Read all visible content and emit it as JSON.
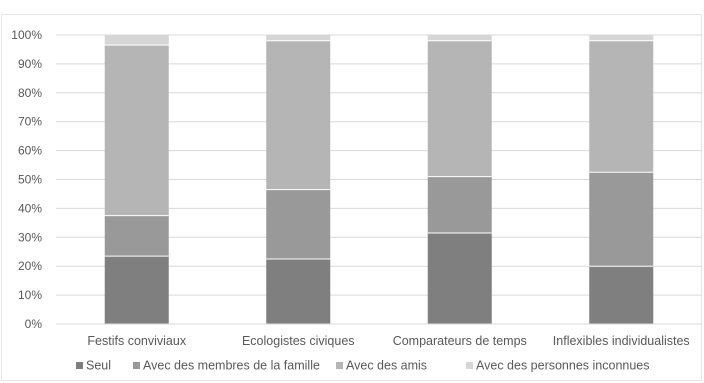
{
  "chart_data": {
    "type": "bar",
    "stacked": true,
    "title": "",
    "xlabel": "",
    "ylabel": "",
    "ylim": [
      0,
      100
    ],
    "y_ticks": [
      "0%",
      "10%",
      "20%",
      "30%",
      "40%",
      "50%",
      "60%",
      "70%",
      "80%",
      "90%",
      "100%"
    ],
    "categories": [
      "Festifs conviviaux",
      "Ecologistes civiques",
      "Comparateurs de temps",
      "Inflexibles individualistes"
    ],
    "series": [
      {
        "name": "Seul",
        "color": "#7f7f7f",
        "values": [
          23.5,
          22.5,
          31.5,
          20
        ]
      },
      {
        "name": "Avec des membres de la famille",
        "color": "#999999",
        "values": [
          14,
          24,
          19.5,
          32.5
        ]
      },
      {
        "name": "Avec des amis",
        "color": "#b5b5b5",
        "values": [
          59,
          51.5,
          47,
          45.5
        ]
      },
      {
        "name": "Avec des personnes inconnues",
        "color": "#d6d6d6",
        "values": [
          3.5,
          2,
          2,
          2
        ]
      }
    ],
    "grid": true,
    "legend_position": "bottom"
  }
}
